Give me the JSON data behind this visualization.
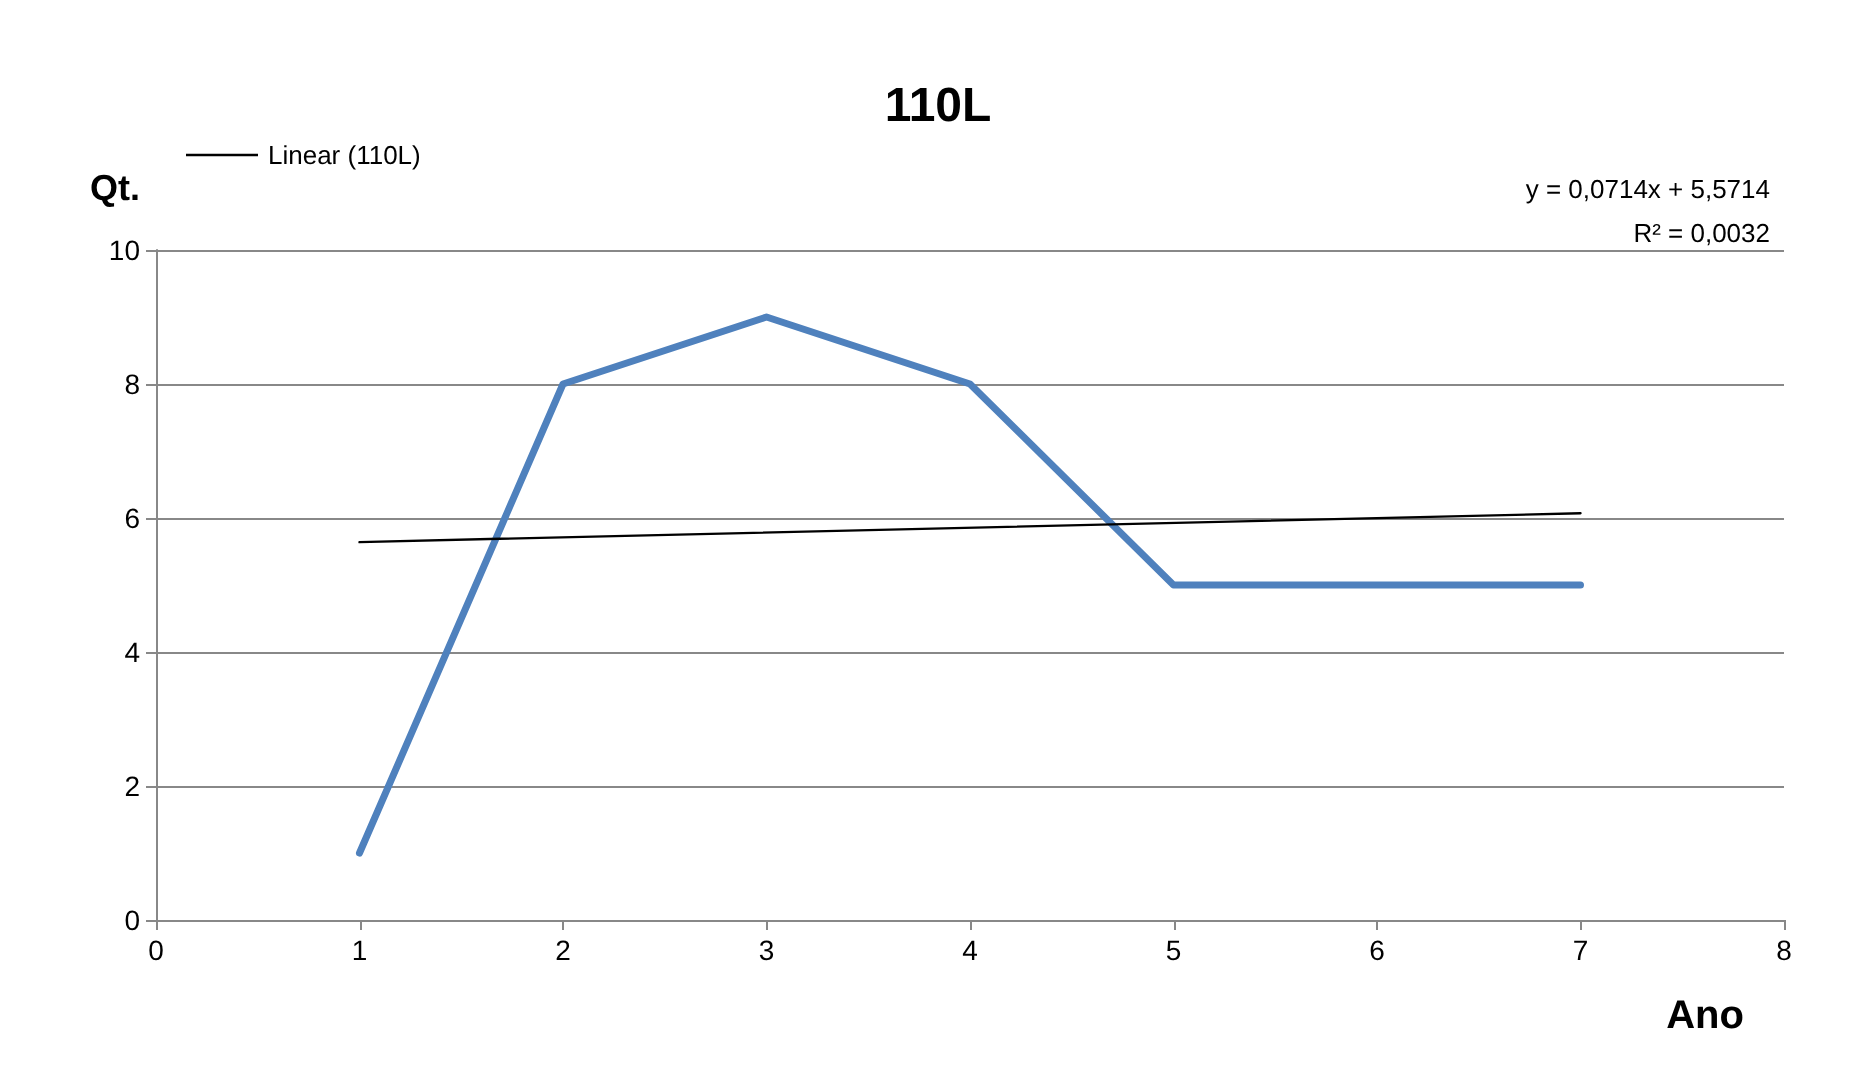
{
  "chart_data": {
    "type": "line",
    "title": "110L",
    "xlabel": "Ano",
    "ylabel": "Qt.",
    "x": [
      1,
      2,
      3,
      4,
      5,
      6,
      7
    ],
    "series": [
      {
        "color": "#4f81bd",
        "values": [
          1,
          8,
          9,
          8,
          5,
          5,
          5
        ]
      },
      {
        "name": "Linear (110L)",
        "color": "#000000",
        "x": [
          1,
          7
        ],
        "values": [
          5.64,
          6.07
        ]
      }
    ],
    "xlim": [
      0,
      8
    ],
    "xticks": [
      0,
      1,
      2,
      3,
      4,
      5,
      6,
      7,
      8
    ],
    "ylim": [
      0,
      10
    ],
    "yticks": [
      0,
      2,
      4,
      6,
      8,
      10
    ],
    "grid": "y",
    "legend": "top left",
    "marker": "none",
    "line_style": "solid",
    "annotations": [
      "y = 0,0714x + 5,5714",
      "R² = 0,0032"
    ]
  }
}
